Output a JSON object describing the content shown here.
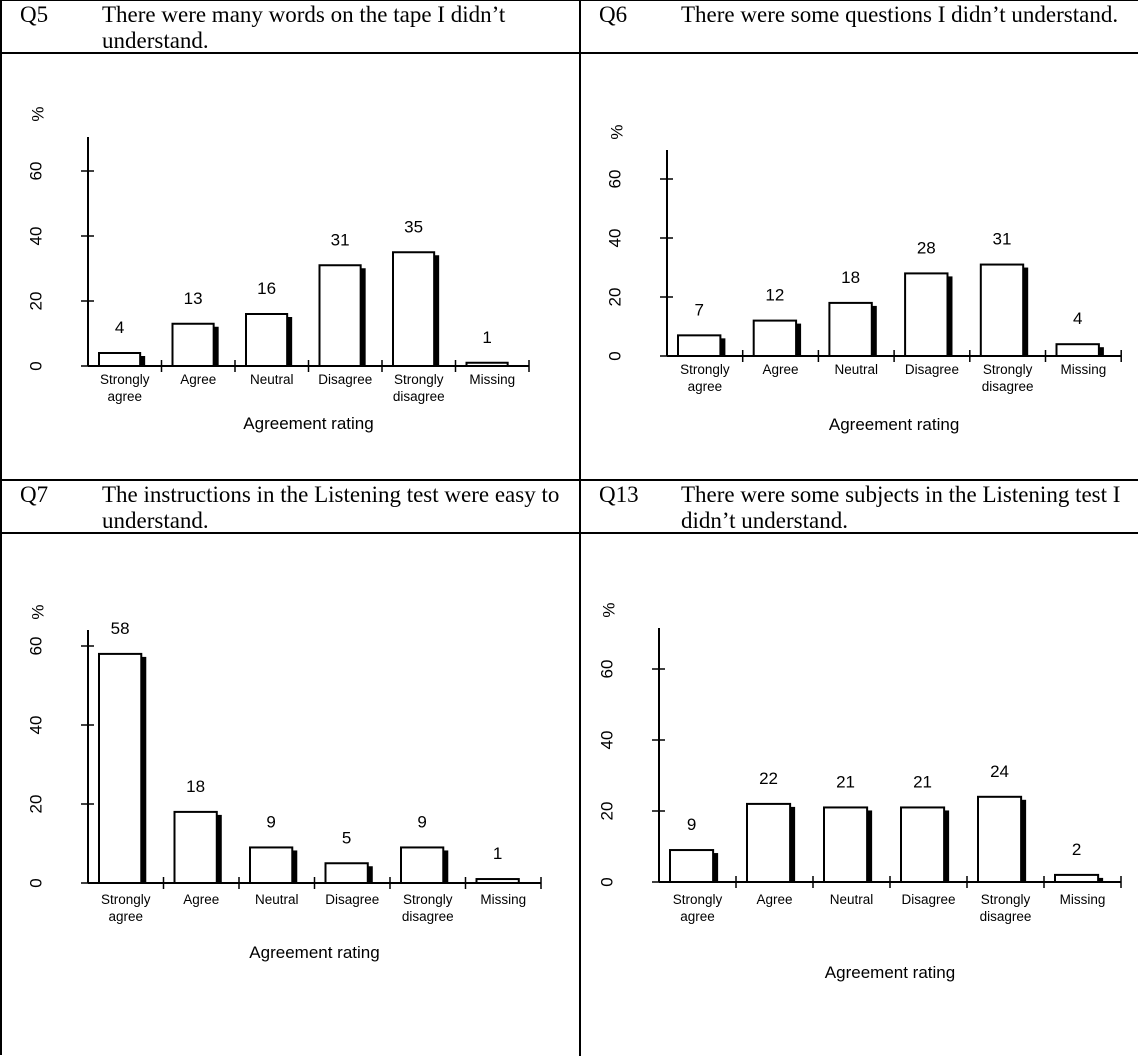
{
  "panels": [
    {
      "question": "Q5",
      "text": "There were many words on the tape I didn’t understand.",
      "chart_data": {
        "type": "bar",
        "categories": [
          [
            "Strongly",
            "agree"
          ],
          [
            "Agree"
          ],
          [
            "Neutral"
          ],
          [
            "Disagree"
          ],
          [
            "Strongly",
            "disagree"
          ],
          [
            "Missing"
          ]
        ],
        "values": [
          4,
          13,
          16,
          31,
          35,
          1
        ],
        "data_labels": [
          "4",
          "13",
          "16",
          "31",
          "35",
          "1"
        ],
        "ylabel": "%",
        "xlabel": "Agreement rating",
        "yticks": [
          "0",
          "20",
          "40",
          "60"
        ],
        "ylim": [
          0,
          70
        ],
        "grid": false,
        "legend": "none"
      }
    },
    {
      "question": "Q6",
      "text": "There were some questions I didn’t understand.",
      "chart_data": {
        "type": "bar",
        "categories": [
          [
            "Strongly",
            "agree"
          ],
          [
            "Agree"
          ],
          [
            "Neutral"
          ],
          [
            "Disagree"
          ],
          [
            "Strongly",
            "disagree"
          ],
          [
            "Missing"
          ]
        ],
        "values": [
          7,
          12,
          18,
          28,
          31,
          4
        ],
        "data_labels": [
          "7",
          "12",
          "18",
          "28",
          "31",
          "4"
        ],
        "ylabel": "%",
        "xlabel": "Agreement rating",
        "yticks": [
          "0",
          "20",
          "40",
          "60"
        ],
        "ylim": [
          0,
          70
        ],
        "grid": false,
        "legend": "none"
      }
    },
    {
      "question": "Q7",
      "text": "The instructions in the Listening test were easy to understand.",
      "chart_data": {
        "type": "bar",
        "categories": [
          [
            "Strongly",
            "agree"
          ],
          [
            "Agree"
          ],
          [
            "Neutral"
          ],
          [
            "Disagree"
          ],
          [
            "Strongly",
            "disagree"
          ],
          [
            "Missing"
          ]
        ],
        "values": [
          58,
          18,
          9,
          5,
          9,
          1
        ],
        "data_labels": [
          "58",
          "18",
          "9",
          "5",
          "9",
          "1"
        ],
        "ylabel": "%",
        "xlabel": "Agreement rating",
        "yticks": [
          "0",
          "20",
          "40",
          "60"
        ],
        "ylim": [
          0,
          70
        ],
        "grid": false,
        "legend": "none"
      }
    },
    {
      "question": "Q13",
      "text": "There were some subjects in the Listening test I didn’t understand.",
      "chart_data": {
        "type": "bar",
        "categories": [
          [
            "Strongly",
            "agree"
          ],
          [
            "Agree"
          ],
          [
            "Neutral"
          ],
          [
            "Disagree"
          ],
          [
            "Strongly",
            "disagree"
          ],
          [
            "Missing"
          ]
        ],
        "values": [
          9,
          22,
          21,
          21,
          24,
          2
        ],
        "data_labels": [
          "9",
          "22",
          "21",
          "21",
          "24",
          "2"
        ],
        "ylabel": "%",
        "xlabel": "Agreement rating",
        "yticks": [
          "0",
          "20",
          "40",
          "60"
        ],
        "ylim": [
          0,
          70
        ],
        "grid": false,
        "legend": "none"
      }
    }
  ]
}
